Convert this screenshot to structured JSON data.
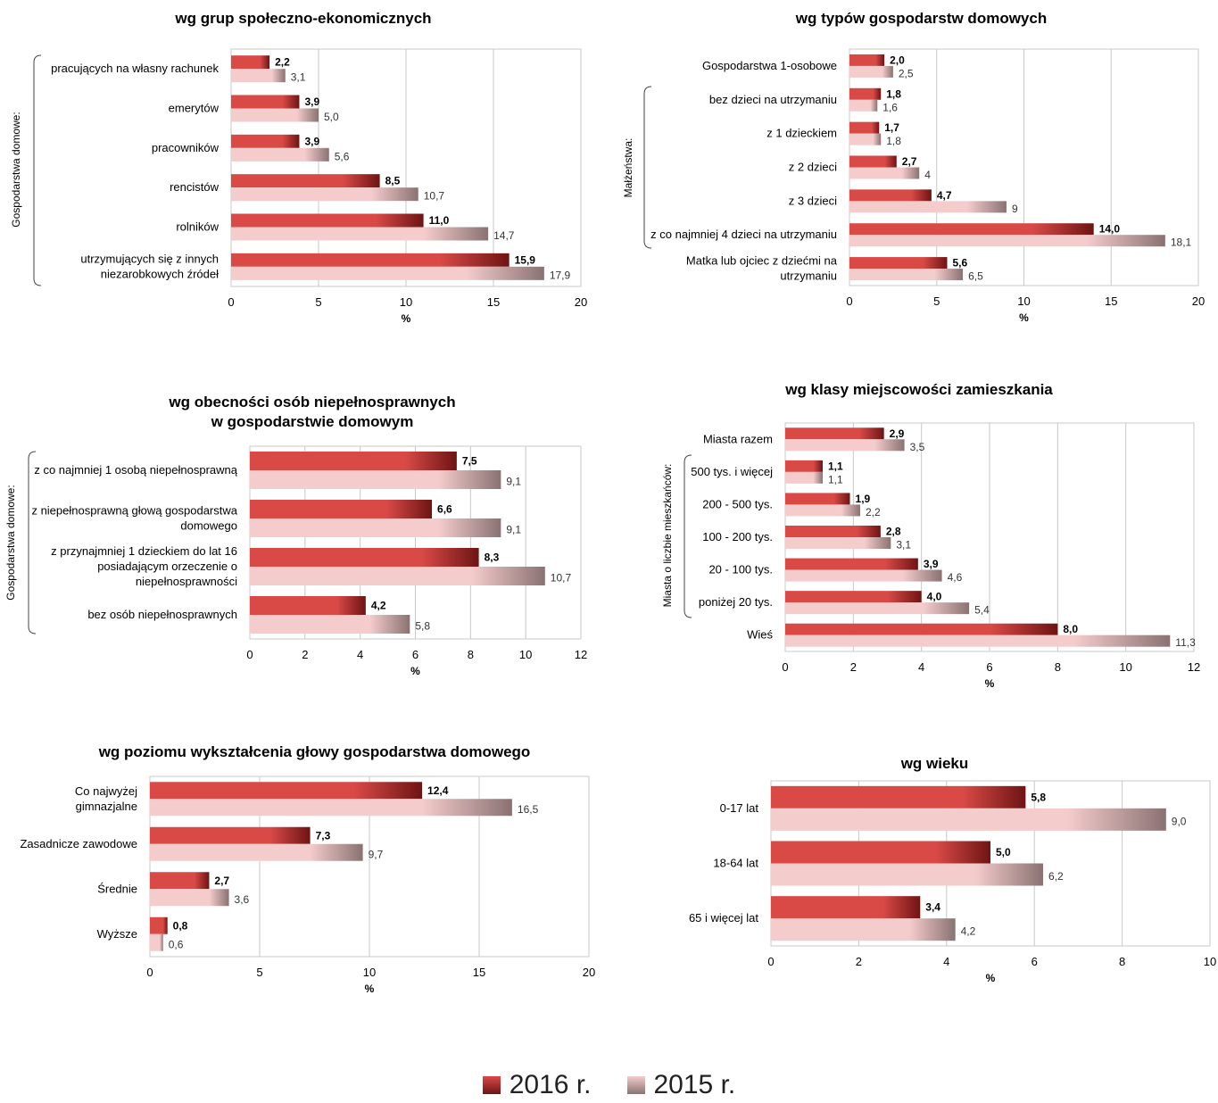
{
  "legend": {
    "items": [
      {
        "label": "2016 r.",
        "color": "#c0393a"
      },
      {
        "label": "2015 r.",
        "color": "#e9b3b3"
      }
    ]
  },
  "colors": {
    "s2016_light": "#d94a47",
    "s2016_dark": "#6e1414",
    "s2015_light": "#f5cccc",
    "s2015_dark": "#8a7272",
    "grid": "#c8c8c8",
    "axis": "#a0a0a0"
  },
  "chart_data": [
    {
      "type": "bar",
      "title": "wg grup społeczno-ekonomicznych",
      "xlabel": "%",
      "group_label": "Gospodarstwa domowe:",
      "xlim": [
        0,
        20
      ],
      "ticks": [
        0,
        5,
        10,
        15,
        20
      ],
      "decimals": 1,
      "categories": [
        "pracujących na własny rachunek",
        "emerytów",
        "pracowników",
        "rencistów",
        "rolników",
        "utrzymujących się z innych\nniezarobkowych źródeł"
      ],
      "series": [
        {
          "name": "2016 r.",
          "values": [
            2.2,
            3.9,
            3.9,
            8.5,
            11.0,
            15.9
          ]
        },
        {
          "name": "2015 r.",
          "values": [
            3.1,
            5.0,
            5.6,
            10.7,
            14.7,
            17.9
          ]
        }
      ],
      "value_labels_2015": [
        "3,1",
        "5,0",
        "5,6",
        "10,7",
        "14,7",
        "17,9"
      ]
    },
    {
      "type": "bar",
      "title": "wg typów gospodarstw domowych",
      "xlabel": "%",
      "group_label": "Małżeństwa:",
      "xlim": [
        0,
        20
      ],
      "ticks": [
        0,
        5,
        10,
        15,
        20
      ],
      "categories": [
        "Gospodarstwa 1-osobowe",
        "bez dzieci na utrzymaniu",
        "z 1 dzieckiem",
        "z 2 dzieci",
        "z 3 dzieci",
        "z co najmniej 4 dzieci na utrzymaniu",
        "Matka lub ojciec z dziećmi na\nutrzymaniu"
      ],
      "series": [
        {
          "name": "2016 r.",
          "values": [
            2.0,
            1.8,
            1.7,
            2.7,
            4.7,
            14.0,
            5.6
          ]
        },
        {
          "name": "2015 r.",
          "values": [
            2.5,
            1.6,
            1.8,
            4,
            9,
            18.1,
            6.5
          ]
        }
      ],
      "value_labels_2015": [
        "2,5",
        "1,6",
        "1,8",
        "4",
        "9",
        "18,1",
        "6,5"
      ]
    },
    {
      "type": "bar",
      "title": "wg obecności osób niepełnosprawnych\nw gospodarstwie domowym",
      "xlabel": "%",
      "group_label": "Gospodarstwa domowe:",
      "xlim": [
        0,
        12
      ],
      "ticks": [
        0,
        2,
        4,
        6,
        8,
        10,
        12
      ],
      "categories": [
        "z co najmniej 1 osobą niepełnosprawną",
        "z niepełnosprawną głową gospodarstwa\ndomowego",
        "z przynajmniej 1 dzieckiem do lat 16\nposiadającym orzeczenie o\nniepełnosprawności",
        "bez osób niepełnosprawnych"
      ],
      "series": [
        {
          "name": "2016 r.",
          "values": [
            7.5,
            6.6,
            8.3,
            4.2
          ]
        },
        {
          "name": "2015 r.",
          "values": [
            9.1,
            9.1,
            10.7,
            5.8
          ]
        }
      ],
      "value_labels_2015": [
        "9,1",
        "9,1",
        "10,7",
        "5,8"
      ]
    },
    {
      "type": "bar",
      "title": "wg klasy miejscowości zamieszkania",
      "xlabel": "%",
      "group_label": "Miasta o liczbie mieszkańców:",
      "xlim": [
        0,
        12
      ],
      "ticks": [
        0,
        2,
        4,
        6,
        8,
        10,
        12
      ],
      "categories": [
        "Miasta razem",
        "500 tys. i więcej",
        "200 - 500 tys.",
        "100 - 200 tys.",
        "20 - 100 tys.",
        "poniżej 20 tys.",
        "Wieś"
      ],
      "series": [
        {
          "name": "2016 r.",
          "values": [
            2.9,
            1.1,
            1.9,
            2.8,
            3.9,
            4.0,
            8.0
          ]
        },
        {
          "name": "2015 r.",
          "values": [
            3.5,
            1.1,
            2.2,
            3.1,
            4.6,
            5.4,
            11.3
          ]
        }
      ],
      "value_labels_2015": [
        "3,5",
        "1,1",
        "2,2",
        "3,1",
        "4,6",
        "5,4",
        "11,3"
      ]
    },
    {
      "type": "bar",
      "title": "wg poziomu wykształcenia głowy gospodarstwa domowego",
      "xlabel": "%",
      "group_label": "",
      "xlim": [
        0,
        20
      ],
      "ticks": [
        0,
        5,
        10,
        15,
        20
      ],
      "categories": [
        "Co najwyżej\ngimnazjalne",
        "Zasadnicze zawodowe",
        "Średnie",
        "Wyższe"
      ],
      "series": [
        {
          "name": "2016 r.",
          "values": [
            12.4,
            7.3,
            2.7,
            0.8
          ]
        },
        {
          "name": "2015 r.",
          "values": [
            16.5,
            9.7,
            3.6,
            0.6
          ]
        }
      ],
      "value_labels_2015": [
        "16,5",
        "9,7",
        "3,6",
        "0,6"
      ]
    },
    {
      "type": "bar",
      "title": "wg wieku",
      "xlabel": "%",
      "group_label": "",
      "xlim": [
        0,
        10
      ],
      "ticks": [
        0,
        2,
        4,
        6,
        8,
        10
      ],
      "categories": [
        "0-17 lat",
        "18-64 lat",
        "65 i więcej lat"
      ],
      "series": [
        {
          "name": "2016 r.",
          "values": [
            5.8,
            5.0,
            3.4
          ]
        },
        {
          "name": "2015 r.",
          "values": [
            9.0,
            6.2,
            4.2
          ]
        }
      ],
      "value_labels_2015": [
        "9,0",
        "6,2",
        "4,2"
      ]
    }
  ]
}
